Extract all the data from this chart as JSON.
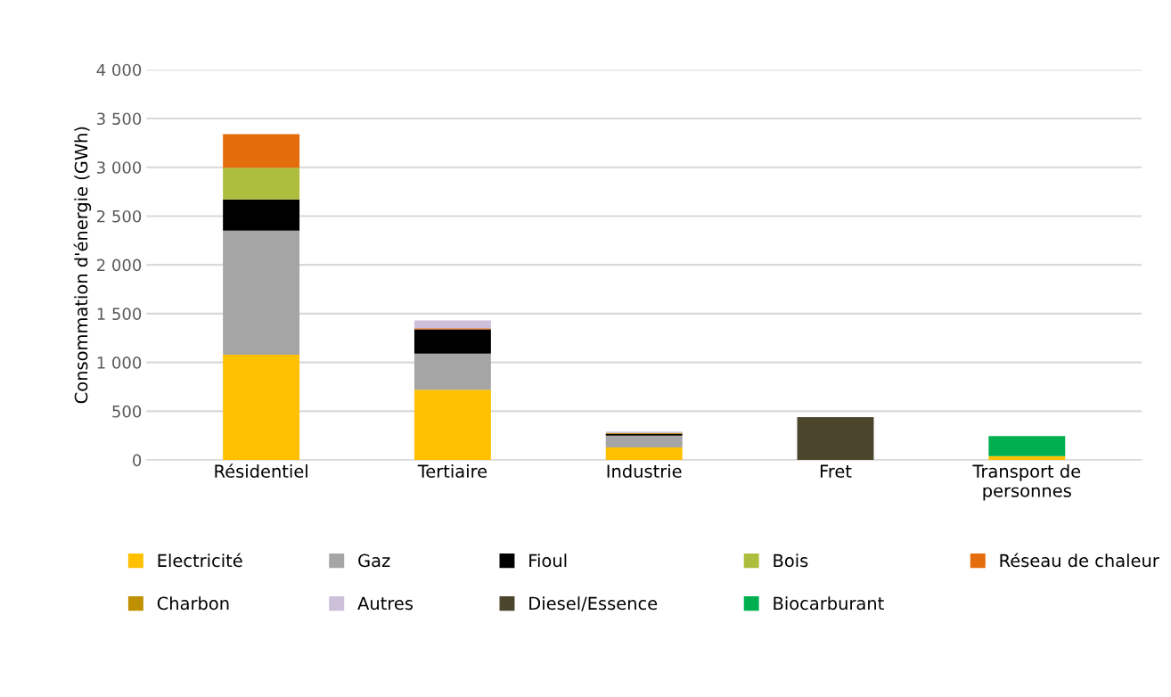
{
  "chart_data": {
    "type": "bar",
    "stacked": true,
    "ylabel": "Consommation d'énergie (GWh)",
    "categories": [
      "Résidentiel",
      "Tertiaire",
      "Industrie",
      "Fret",
      "Transport de personnes"
    ],
    "series": [
      {
        "name": "Electricité",
        "color": "#ffc000",
        "values": [
          1080,
          720,
          130,
          0,
          40
        ]
      },
      {
        "name": "Gaz",
        "color": "#a5a5a5",
        "values": [
          1270,
          370,
          120,
          0,
          0
        ]
      },
      {
        "name": "Fioul",
        "color": "#000000",
        "values": [
          320,
          250,
          15,
          0,
          0
        ]
      },
      {
        "name": "Bois",
        "color": "#adbe3c",
        "values": [
          325,
          0,
          0,
          0,
          0
        ]
      },
      {
        "name": "Réseau de chaleur",
        "color": "#e46c0a",
        "values": [
          345,
          10,
          0,
          0,
          0
        ]
      },
      {
        "name": "Charbon",
        "color": "#bf9000",
        "values": [
          0,
          0,
          10,
          0,
          0
        ]
      },
      {
        "name": "Autres",
        "color": "#ccc0da",
        "values": [
          0,
          80,
          15,
          0,
          0
        ]
      },
      {
        "name": "Diesel/Essence",
        "color": "#4b452b",
        "values": [
          0,
          0,
          0,
          440,
          0
        ]
      },
      {
        "name": "Biocarburant",
        "color": "#00b050",
        "values": [
          0,
          0,
          0,
          0,
          205
        ]
      }
    ],
    "ylim": [
      0,
      4000
    ],
    "yticks": [
      {
        "value": 0,
        "label": "0"
      },
      {
        "value": 500,
        "label": "500"
      },
      {
        "value": 1000,
        "label": "1 000"
      },
      {
        "value": 1500,
        "label": "1 500"
      },
      {
        "value": 2000,
        "label": "2 000"
      },
      {
        "value": 2500,
        "label": "2 500"
      },
      {
        "value": 3000,
        "label": "3 000"
      },
      {
        "value": 3500,
        "label": "3 500"
      },
      {
        "value": 4000,
        "label": "4 000"
      }
    ],
    "grid": "y",
    "legend": "bottom"
  }
}
